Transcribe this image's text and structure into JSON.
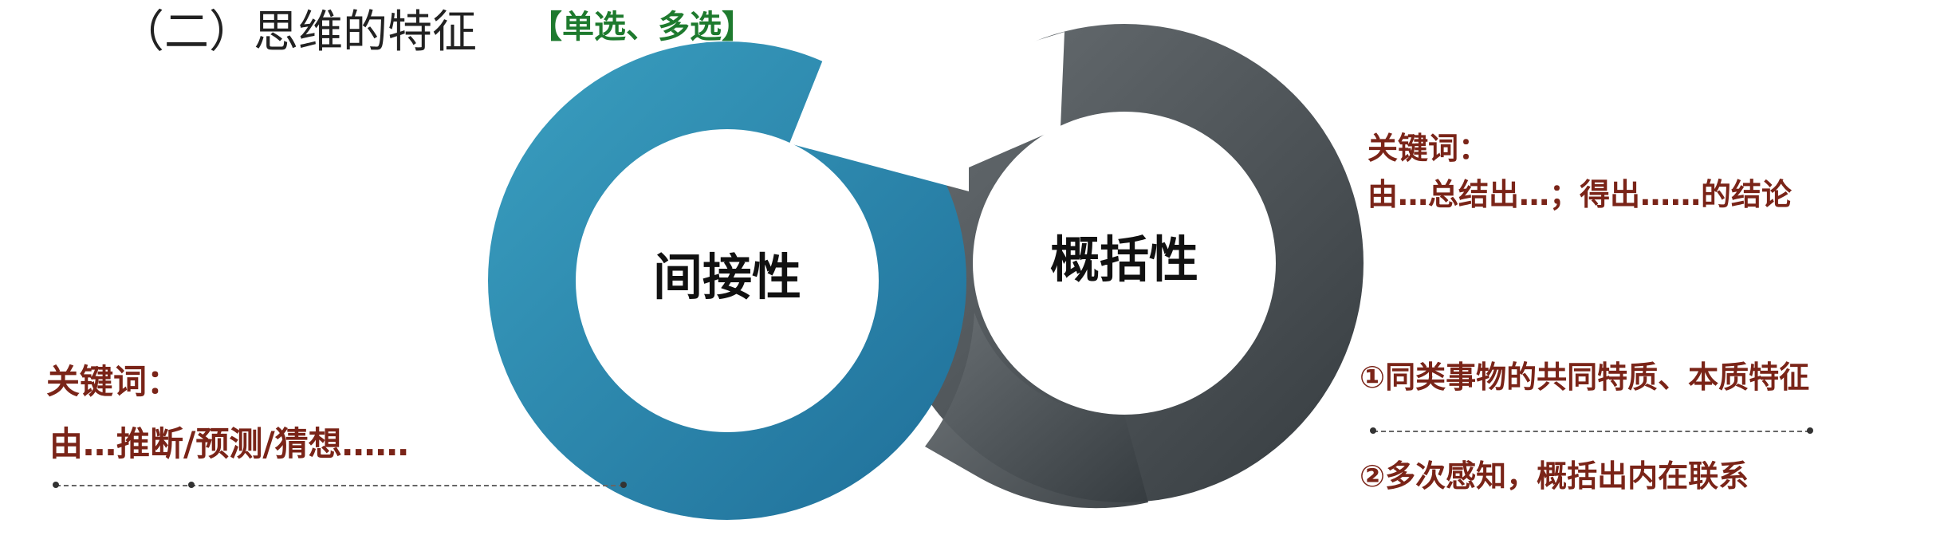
{
  "header": {
    "title": "（二）思维的特征",
    "tag": "【单选、多选】"
  },
  "diagram": {
    "left_circle": {
      "label": "间接性",
      "color": "#2b88ad"
    },
    "right_circle": {
      "label": "概括性",
      "color": "#4f5559"
    }
  },
  "keywords_left": {
    "title": "关键词：",
    "text": "由…推断/预测/猜想……"
  },
  "keywords_right": {
    "title": "关键词：",
    "text": "由…总结出…；得出……的结论",
    "items": [
      "①同类事物的共同特质、本质特征",
      "②多次感知，概括出内在联系"
    ]
  },
  "colors": {
    "keyword": "#7a2418",
    "tag": "#1e7a2e"
  }
}
